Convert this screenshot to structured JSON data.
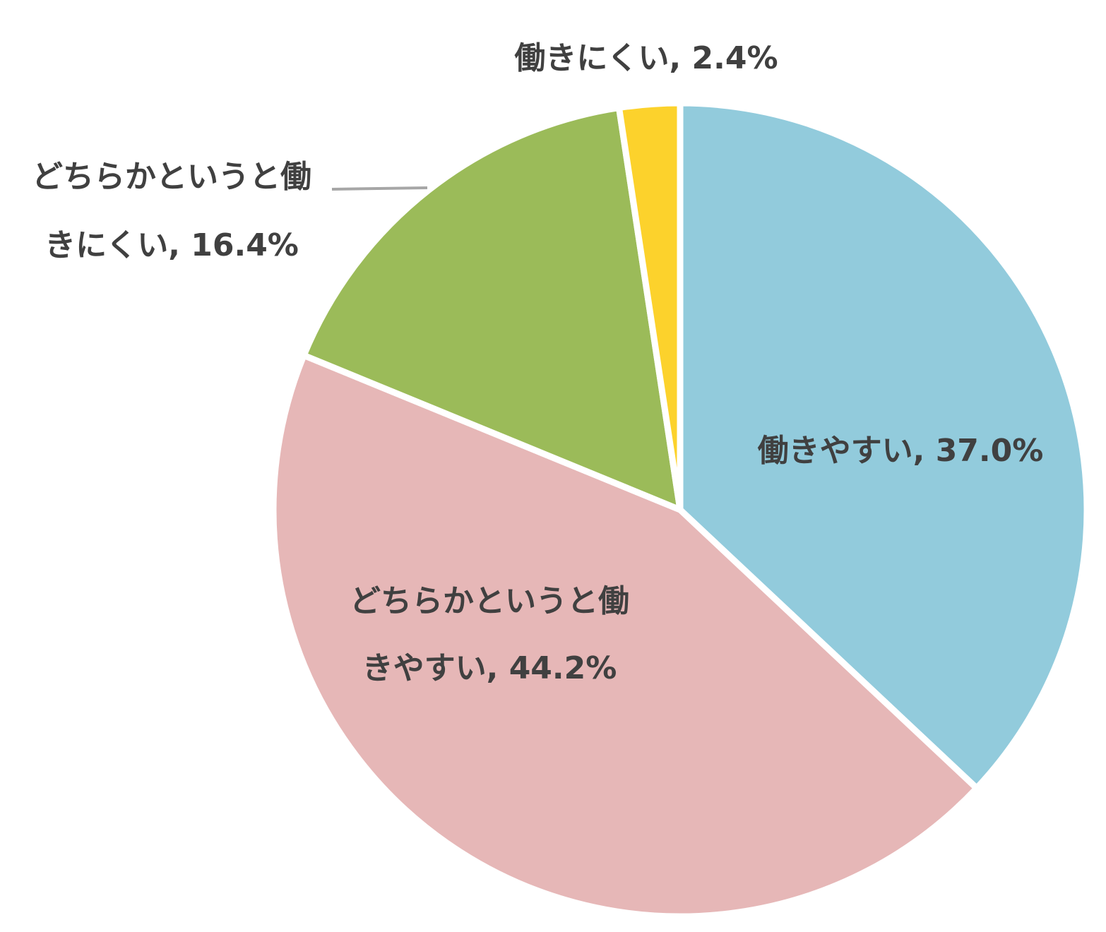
{
  "chart_data": {
    "type": "pie",
    "title": "",
    "slices": [
      {
        "label": "働きやすい",
        "value": 37.0,
        "display": "働きやすい, 37.0%",
        "lines": [
          "働きやすい, 37.0%"
        ],
        "color": "#92cbdc"
      },
      {
        "label": "どちらかというと働きやすい",
        "value": 44.2,
        "display": "どちらかというと働きやすい, 44.2%",
        "lines": [
          "どちらかというと働",
          "きやすい, 44.2%"
        ],
        "color": "#e6b7b7"
      },
      {
        "label": "どちらかというと働きにくい",
        "value": 16.4,
        "display": "どちらかというと働きにくい, 16.4%",
        "lines": [
          "どちらかというと働",
          "きにくい, 16.4%"
        ],
        "color": "#9bbb59"
      },
      {
        "label": "働きにくい",
        "value": 2.4,
        "display": "働きにくい, 2.4%",
        "lines": [
          "働きにくい, 2.4%"
        ],
        "color": "#fcd22c"
      }
    ],
    "start_angle": "12 o'clock",
    "direction": "clockwise",
    "legend": "none",
    "value_unit": "%"
  }
}
